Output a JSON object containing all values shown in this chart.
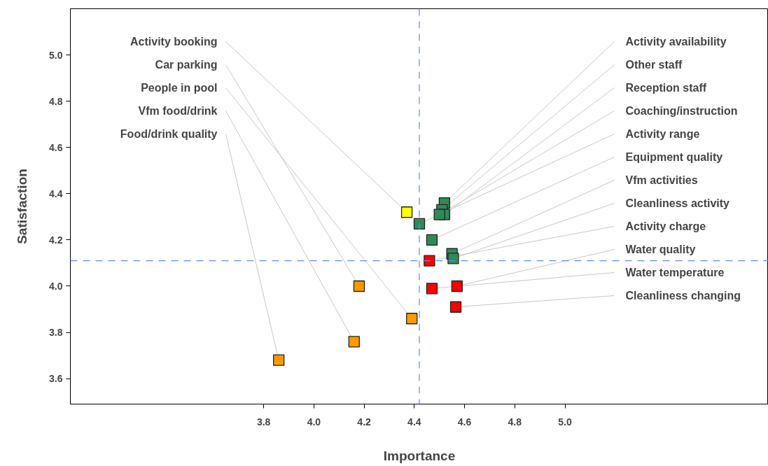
{
  "chart_data": {
    "type": "scatter",
    "xlabel": "Importance",
    "ylabel": "Satisfaction",
    "xlim": [
      3.03,
      5.81
    ],
    "ylim": [
      3.49,
      5.2
    ],
    "xticks": [
      {
        "value": 3.8,
        "label": "3.8"
      },
      {
        "value": 4.0,
        "label": "4.0"
      },
      {
        "value": 4.2,
        "label": "4.2"
      },
      {
        "value": 4.4,
        "label": "4.4"
      },
      {
        "value": 4.6,
        "label": "4.6"
      },
      {
        "value": 4.8,
        "label": "4.8"
      },
      {
        "value": 5.0,
        "label": "5.0"
      }
    ],
    "yticks": [
      {
        "value": 3.6,
        "label": "3.6"
      },
      {
        "value": 3.8,
        "label": "3.8"
      },
      {
        "value": 4.0,
        "label": "4.0"
      },
      {
        "value": 4.2,
        "label": "4.2"
      },
      {
        "value": 4.4,
        "label": "4.4"
      },
      {
        "value": 4.6,
        "label": "4.6"
      },
      {
        "value": 4.8,
        "label": "4.8"
      },
      {
        "value": 5.0,
        "label": "5.0"
      }
    ],
    "grid": false,
    "marker": "square",
    "ref_lines": [
      {
        "axis": "x",
        "value": 4.42,
        "color": "#6688ee",
        "line_style": "dashed"
      },
      {
        "axis": "y",
        "value": 4.11,
        "color": "#6688ee",
        "line_style": "dashed"
      }
    ],
    "series": [
      {
        "x": [
          4.37,
          4.18,
          4.39,
          4.16,
          3.86,
          4.52,
          4.51,
          4.52,
          4.5,
          4.42,
          4.47,
          4.55,
          4.555,
          4.46,
          4.57,
          4.47,
          4.565
        ],
        "values": [
          4.32,
          4.0,
          3.86,
          3.76,
          3.68,
          4.36,
          4.33,
          4.31,
          4.31,
          4.27,
          4.2,
          4.14,
          4.12,
          4.11,
          4.0,
          3.99,
          3.91
        ],
        "colors": [
          "#ffff00",
          "#ff9900",
          "#ff9900",
          "#ff9900",
          "#ff9900",
          "#2e8b57",
          "#2e8b57",
          "#2e8b57",
          "#2e8b57",
          "#2e8b57",
          "#2e8b57",
          "#2e8b57",
          "#2e8b57",
          "#ff0000",
          "#ff0000",
          "#ff0000",
          "#ff0000"
        ]
      }
    ],
    "annotations": [
      {
        "text": "Activity booking",
        "x": 4.37,
        "y": 4.32
      },
      {
        "text": "Car parking",
        "x": 4.18,
        "y": 4.0
      },
      {
        "text": "People in pool",
        "x": 4.39,
        "y": 3.86
      },
      {
        "text": "Vfm food/drink",
        "x": 4.16,
        "y": 3.76
      },
      {
        "text": "Food/drink quality",
        "x": 3.86,
        "y": 3.68
      },
      {
        "text": "Activity availability",
        "x": 4.52,
        "y": 4.36
      },
      {
        "text": "Other staff",
        "x": 4.51,
        "y": 4.33
      },
      {
        "text": "Reception staff",
        "x": 4.52,
        "y": 4.31
      },
      {
        "text": "Coaching/instruction",
        "x": 4.5,
        "y": 4.31
      },
      {
        "text": "Activity range",
        "x": 4.42,
        "y": 4.27
      },
      {
        "text": "Equipment quality",
        "x": 4.47,
        "y": 4.2
      },
      {
        "text": "Vfm activities",
        "x": 4.55,
        "y": 4.14
      },
      {
        "text": "Cleanliness activity",
        "x": 4.555,
        "y": 4.12
      },
      {
        "text": "Activity charge",
        "x": 4.46,
        "y": 4.11
      },
      {
        "text": "Water quality",
        "x": 4.57,
        "y": 4.0
      },
      {
        "text": "Water temperature",
        "x": 4.47,
        "y": 3.99
      },
      {
        "text": "Cleanliness changing",
        "x": 4.565,
        "y": 3.91
      }
    ]
  }
}
